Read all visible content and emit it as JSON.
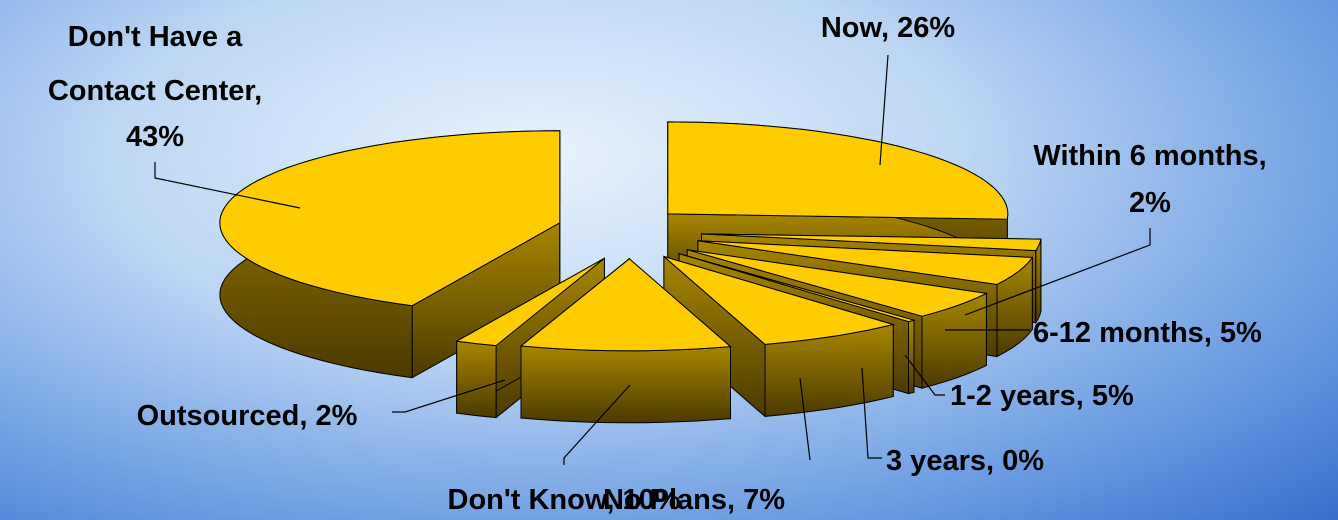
{
  "colors": {
    "top": "#ffcc00",
    "side_light": "#a88600",
    "side_dark": "#4c3a00",
    "edge": "#000000"
  },
  "chart_data": {
    "type": "pie",
    "style": "3d-exploded",
    "slices": [
      {
        "label": "Now",
        "value": 26,
        "text": "Now, 26%"
      },
      {
        "label": "Within 6 months",
        "value": 2,
        "text": [
          "Within 6 months,",
          "2%"
        ]
      },
      {
        "label": "6-12 months",
        "value": 5,
        "text": "6-12 months, 5%"
      },
      {
        "label": "1-2 years",
        "value": 5,
        "text": "1-2 years, 5%"
      },
      {
        "label": "3 years",
        "value": 0,
        "text": "3 years, 0%"
      },
      {
        "label": "No Plans",
        "value": 7,
        "text": "No Plans, 7%"
      },
      {
        "label": "Don't Know",
        "value": 10,
        "text": "Don't Know, 10%"
      },
      {
        "label": "Outsourced",
        "value": 2,
        "text": "Outsourced, 2%"
      },
      {
        "label": "Don't Have a Contact Center",
        "value": 43,
        "text": [
          "Don't Have a",
          "Contact Center,",
          "43%"
        ]
      }
    ]
  }
}
